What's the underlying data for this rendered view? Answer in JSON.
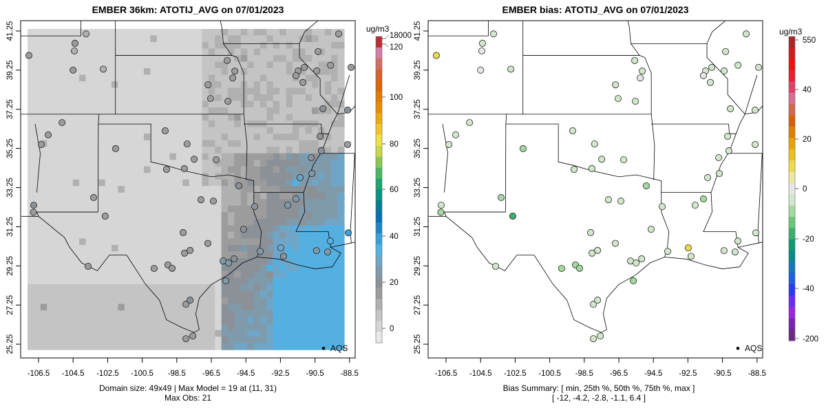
{
  "left": {
    "title": "EMBER 36km: ATOTIJ_AVG on 07/01/2023",
    "footer_line1": "Domain size: 49x49 | Max Model = 19 at (11, 31)",
    "footer_line2": "Max Obs: 21",
    "legend_label": "AQS",
    "colorbar": {
      "unit": "ug/m3",
      "ticks": [
        "18000",
        "120",
        "100",
        "80",
        "60",
        "40",
        "20",
        "0"
      ],
      "colors": [
        "#e8e8e8",
        "#d6d6d6",
        "#c4c4c4",
        "#b0b0b0",
        "#9c9c9c",
        "#8c9198",
        "#7f9aab",
        "#6fa6c8",
        "#55b0e2",
        "#3d9fd8",
        "#1f86c4",
        "#0a6fae",
        "#057a94",
        "#079383",
        "#1ca56f",
        "#4db563",
        "#8cc657",
        "#c7d74a",
        "#efe046",
        "#f0c52a",
        "#eaaa10",
        "#e48e04",
        "#df7a03",
        "#db6508",
        "#d4612e",
        "#cf6f63",
        "#d17da6",
        "#b83036"
      ]
    }
  },
  "right": {
    "title": "EMBER bias: ATOTIJ_AVG on 07/01/2023",
    "footer_line1": "Bias Summary: [ min, 25th %, 50th %, 75th %, max ]",
    "footer_line2": "[ -12,   -4.2,   -2.8,   -1.1,   6.4 ]",
    "legend_label": "AQS",
    "colorbar": {
      "unit": "ug/m3",
      "ticks": [
        "550",
        "40",
        "20",
        "0",
        "-20",
        "-40",
        "-200"
      ],
      "colors": [
        "#6a2a86",
        "#7a22b4",
        "#9a26e4",
        "#6a2cf4",
        "#2a38f4",
        "#1e5ee0",
        "#1278b8",
        "#078a8c",
        "#0e9a6e",
        "#3cae6e",
        "#6cc67c",
        "#a4d9a0",
        "#d2e6cc",
        "#e6e6e6",
        "#ece6a0",
        "#eeda4c",
        "#ecc01e",
        "#e6a206",
        "#de8004",
        "#d6600a",
        "#d06a4a",
        "#d47090",
        "#e2406a",
        "#f01e2e",
        "#f80c0c",
        "#d21a1a",
        "#a82828"
      ]
    }
  },
  "axes": {
    "x_ticks": [
      "-106.5",
      "-104.5",
      "-102.5",
      "-100.5",
      "-98.5",
      "-96.5",
      "-94.5",
      "-92.5",
      "-90.5",
      "-88.5"
    ],
    "y_ticks": [
      "41.25",
      "39.25",
      "37.25",
      "35.25",
      "33.25",
      "31.25",
      "29.25",
      "27.25",
      "25.25"
    ]
  },
  "chart_data": {
    "type": "map",
    "domain": "EMBER 36km",
    "variable": "ATOTIJ_AVG",
    "date": "07/01/2023",
    "lon_range": [
      -107.5,
      -88.0
    ],
    "lat_range": [
      24.8,
      41.7
    ],
    "model_max": 19,
    "obs_max": 21,
    "bias_summary": {
      "min": -12,
      "p25": -4.2,
      "p50": -2.8,
      "p75": -1.1,
      "max": 6.4
    },
    "stations": [
      {
        "lon": -107.06,
        "lat": 40.0,
        "obs": 8,
        "bias": 6.4
      },
      {
        "lon": -104.39,
        "lat": 40.62,
        "obs": 7,
        "bias": -2
      },
      {
        "lon": -104.43,
        "lat": 40.23,
        "obs": 6,
        "bias": 1
      },
      {
        "lon": -104.5,
        "lat": 39.25,
        "obs": 7,
        "bias": -1
      },
      {
        "lon": -103.75,
        "lat": 41.1,
        "obs": 6,
        "bias": -2
      },
      {
        "lon": -102.75,
        "lat": 39.3,
        "obs": 6,
        "bias": -3
      },
      {
        "lon": -95.58,
        "lat": 39.74,
        "obs": 8,
        "bias": -3
      },
      {
        "lon": -95.14,
        "lat": 39.2,
        "obs": 9,
        "bias": -2
      },
      {
        "lon": -95.26,
        "lat": 38.85,
        "obs": 9,
        "bias": -1
      },
      {
        "lon": -96.69,
        "lat": 38.5,
        "obs": 7,
        "bias": -3
      },
      {
        "lon": -95.54,
        "lat": 37.66,
        "obs": 9,
        "bias": -3
      },
      {
        "lon": -96.54,
        "lat": 37.8,
        "obs": 8,
        "bias": -2
      },
      {
        "lon": -99.17,
        "lat": 36.15,
        "obs": 8,
        "bias": -3
      },
      {
        "lon": -97.9,
        "lat": 35.48,
        "obs": 9,
        "bias": -4
      },
      {
        "lon": -102.04,
        "lat": 35.24,
        "obs": 7,
        "bias": -5
      },
      {
        "lon": -96.22,
        "lat": 34.67,
        "obs": 9,
        "bias": -3
      },
      {
        "lon": -97.49,
        "lat": 34.7,
        "obs": 9,
        "bias": -4
      },
      {
        "lon": -99.09,
        "lat": 34.18,
        "obs": 9,
        "bias": -3
      },
      {
        "lon": -98.06,
        "lat": 34.22,
        "obs": 8,
        "bias": -4
      },
      {
        "lon": -94.91,
        "lat": 33.34,
        "obs": 11,
        "bias": -6
      },
      {
        "lon": -91.36,
        "lat": 33.76,
        "obs": 15,
        "bias": -4
      },
      {
        "lon": -103.31,
        "lat": 32.74,
        "obs": 8,
        "bias": -5
      },
      {
        "lon": -106.78,
        "lat": 32.35,
        "obs": 10,
        "bias": -2
      },
      {
        "lon": -106.8,
        "lat": 31.99,
        "obs": 9,
        "bias": -8
      },
      {
        "lon": -102.64,
        "lat": 31.79,
        "obs": 8,
        "bias": -12
      },
      {
        "lon": -98.13,
        "lat": 30.95,
        "obs": 9,
        "bias": -4
      },
      {
        "lon": -97.73,
        "lat": 30.04,
        "obs": 8,
        "bias": -3
      },
      {
        "lon": -98.05,
        "lat": 29.9,
        "obs": 9,
        "bias": -4
      },
      {
        "lon": -99.01,
        "lat": 29.3,
        "obs": 9,
        "bias": -5
      },
      {
        "lon": -98.77,
        "lat": 29.13,
        "obs": 9,
        "bias": -5
      },
      {
        "lon": -103.63,
        "lat": 29.23,
        "obs": 8,
        "bias": -4
      },
      {
        "lon": -95.82,
        "lat": 29.5,
        "obs": 12,
        "bias": -3
      },
      {
        "lon": -95.5,
        "lat": 29.4,
        "obs": 12,
        "bias": -2
      },
      {
        "lon": -95.18,
        "lat": 29.61,
        "obs": 11,
        "bias": -2
      },
      {
        "lon": -95.66,
        "lat": 28.49,
        "obs": 13,
        "bias": -5
      },
      {
        "lon": -93.67,
        "lat": 29.99,
        "obs": 12,
        "bias": -3
      },
      {
        "lon": -92.32,
        "lat": 29.74,
        "obs": 11,
        "bias": -2
      },
      {
        "lon": -92.48,
        "lat": 30.17,
        "obs": 15,
        "bias": 5
      },
      {
        "lon": -90.41,
        "lat": 30.03,
        "obs": 14,
        "bias": -3
      },
      {
        "lon": -89.77,
        "lat": 29.96,
        "obs": 13,
        "bias": -2
      },
      {
        "lon": -88.57,
        "lat": 30.94,
        "obs": 21,
        "bias": -3
      },
      {
        "lon": -89.61,
        "lat": 30.52,
        "obs": 18,
        "bias": -4
      },
      {
        "lon": -92.08,
        "lat": 32.35,
        "obs": 12,
        "bias": -4
      },
      {
        "lon": -91.6,
        "lat": 32.67,
        "obs": 14,
        "bias": -5
      },
      {
        "lon": -90.13,
        "lat": 35.13,
        "obs": 11,
        "bias": -3
      },
      {
        "lon": -90.68,
        "lat": 33.97,
        "obs": 13,
        "bias": -4
      },
      {
        "lon": -90.72,
        "lat": 34.78,
        "obs": 11,
        "bias": -2
      },
      {
        "lon": -91.12,
        "lat": 39.39,
        "obs": 8,
        "bias": -3
      },
      {
        "lon": -91.48,
        "lat": 39.21,
        "obs": 9,
        "bias": -2
      },
      {
        "lon": -91.6,
        "lat": 38.97,
        "obs": 9,
        "bias": -1
      },
      {
        "lon": -91.2,
        "lat": 38.62,
        "obs": 8,
        "bias": -3
      },
      {
        "lon": -90.32,
        "lat": 40.2,
        "obs": 9,
        "bias": -4
      },
      {
        "lon": -90.4,
        "lat": 39.21,
        "obs": 8,
        "bias": -2
      },
      {
        "lon": -89.6,
        "lat": 39.5,
        "obs": 8,
        "bias": -4
      },
      {
        "lon": -89.13,
        "lat": 41.1,
        "obs": 8,
        "bias": -3
      },
      {
        "lon": -88.41,
        "lat": 39.39,
        "obs": 8,
        "bias": -2
      },
      {
        "lon": -88.61,
        "lat": 37.21,
        "obs": 10,
        "bias": -3
      },
      {
        "lon": -90.04,
        "lat": 37.28,
        "obs": 10,
        "bias": -2
      },
      {
        "lon": -88.61,
        "lat": 35.45,
        "obs": 9,
        "bias": -3
      },
      {
        "lon": -90.2,
        "lat": 35.87,
        "obs": 10,
        "bias": -4
      },
      {
        "lon": -97.97,
        "lat": 27.29,
        "obs": 9,
        "bias": -4
      },
      {
        "lon": -97.73,
        "lat": 27.5,
        "obs": 10,
        "bias": -3
      },
      {
        "lon": -97.97,
        "lat": 25.53,
        "obs": 9,
        "bias": -4
      },
      {
        "lon": -97.57,
        "lat": 25.67,
        "obs": 9,
        "bias": -3
      },
      {
        "lon": -99.81,
        "lat": 29.12,
        "obs": 9,
        "bias": -5
      },
      {
        "lon": -105.94,
        "lat": 35.94,
        "obs": 7,
        "bias": -4
      },
      {
        "lon": -105.14,
        "lat": 36.57,
        "obs": 7,
        "bias": -3
      },
      {
        "lon": -106.34,
        "lat": 35.45,
        "obs": 7,
        "bias": -4
      },
      {
        "lon": -96.38,
        "lat": 32.56,
        "obs": 9,
        "bias": -3
      },
      {
        "lon": -97.1,
        "lat": 32.63,
        "obs": 9,
        "bias": -2
      },
      {
        "lon": -93.99,
        "lat": 32.28,
        "obs": 10,
        "bias": -3
      },
      {
        "lon": -94.63,
        "lat": 31.12,
        "obs": 11,
        "bias": -4
      },
      {
        "lon": -96.7,
        "lat": 30.4,
        "obs": 9,
        "bias": -3
      }
    ]
  }
}
